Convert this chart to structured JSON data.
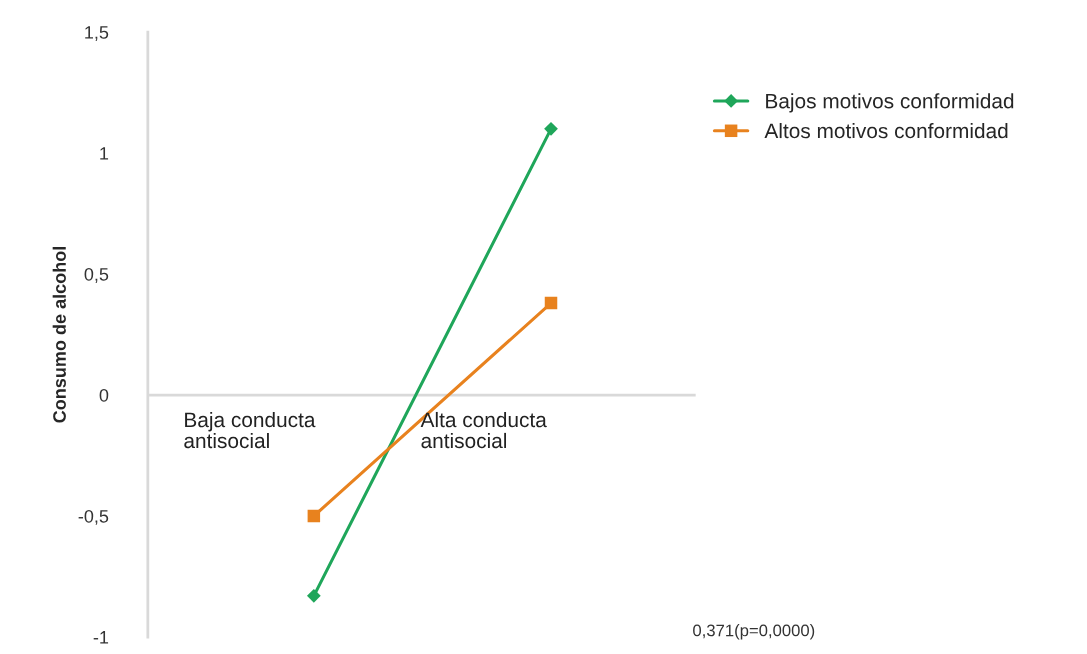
{
  "chart_data": {
    "type": "line",
    "ylabel": "Consumo de alcohol",
    "categories": [
      "Baja conducta antisocial",
      "Alta conducta antisocial"
    ],
    "series": [
      {
        "name": "Bajos motivos conformidad",
        "color": "#1fa65a",
        "marker": "diamond",
        "values": [
          -0.83,
          1.1
        ]
      },
      {
        "name": "Altos motivos conformidad",
        "color": "#e8821e",
        "marker": "square",
        "values": [
          -0.5,
          0.38
        ]
      }
    ],
    "ylim": [
      -1,
      1.5
    ],
    "yticks": [
      {
        "value": -1,
        "label": "-1"
      },
      {
        "value": -0.5,
        "label": "-0,5"
      },
      {
        "value": 0,
        "label": "0"
      },
      {
        "value": 0.5,
        "label": "0,5"
      },
      {
        "value": 1,
        "label": "1"
      },
      {
        "value": 1.5,
        "label": "1,5"
      }
    ],
    "annotations": [
      "0,371(p=0,0000)"
    ],
    "legend": "right",
    "grid": false
  }
}
